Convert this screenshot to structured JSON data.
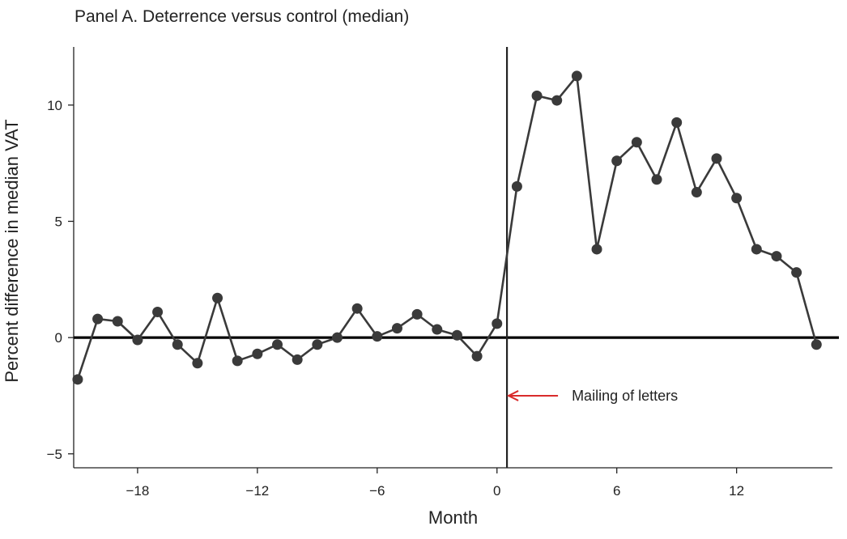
{
  "chart_data": {
    "type": "line",
    "title": "Panel A. Deterrence versus control (median)",
    "xlabel": "Month",
    "ylabel": "Percent difference in median VAT",
    "xlim": [
      -21.2,
      16.8
    ],
    "ylim": [
      -5.6,
      12.5
    ],
    "x_ticks": [
      -18,
      -12,
      -6,
      0,
      6,
      12
    ],
    "x_tick_labels": [
      "−18",
      "−12",
      "−6",
      "0",
      "6",
      "12"
    ],
    "y_ticks": [
      -5,
      0,
      5,
      10
    ],
    "y_tick_labels": [
      "−5",
      "0",
      "5",
      "10"
    ],
    "grid": false,
    "series": [
      {
        "x": [
          -21,
          -20,
          -19,
          -18,
          -17,
          -16,
          -15,
          -14,
          -13,
          -12,
          -11,
          -10,
          -9,
          -8,
          -7,
          -6,
          -5,
          -4,
          -3,
          -2,
          -1,
          0,
          1,
          2,
          3,
          4,
          5,
          6,
          7,
          8,
          9,
          10,
          11,
          12,
          13,
          14,
          15,
          16
        ],
        "values": [
          -1.8,
          0.8,
          0.7,
          -0.1,
          1.1,
          -0.3,
          -1.1,
          1.7,
          -1.0,
          -0.7,
          -0.3,
          -0.95,
          -0.3,
          0.0,
          1.25,
          0.05,
          0.4,
          1.0,
          0.35,
          0.1,
          -0.8,
          0.6,
          6.5,
          10.4,
          10.2,
          11.25,
          3.8,
          7.6,
          8.4,
          6.8,
          9.25,
          6.25,
          7.7,
          6.0,
          3.8,
          3.5,
          2.8,
          -0.3
        ],
        "color": "#3a3a3a"
      }
    ],
    "reference_lines": [
      {
        "axis": "y",
        "value": 0,
        "color": "#000000"
      },
      {
        "axis": "x",
        "value": 0.5,
        "color": "#222222"
      }
    ],
    "annotation": {
      "text": "Mailing of letters",
      "y": -2.5,
      "arrow_color": "#d92b2b"
    }
  }
}
